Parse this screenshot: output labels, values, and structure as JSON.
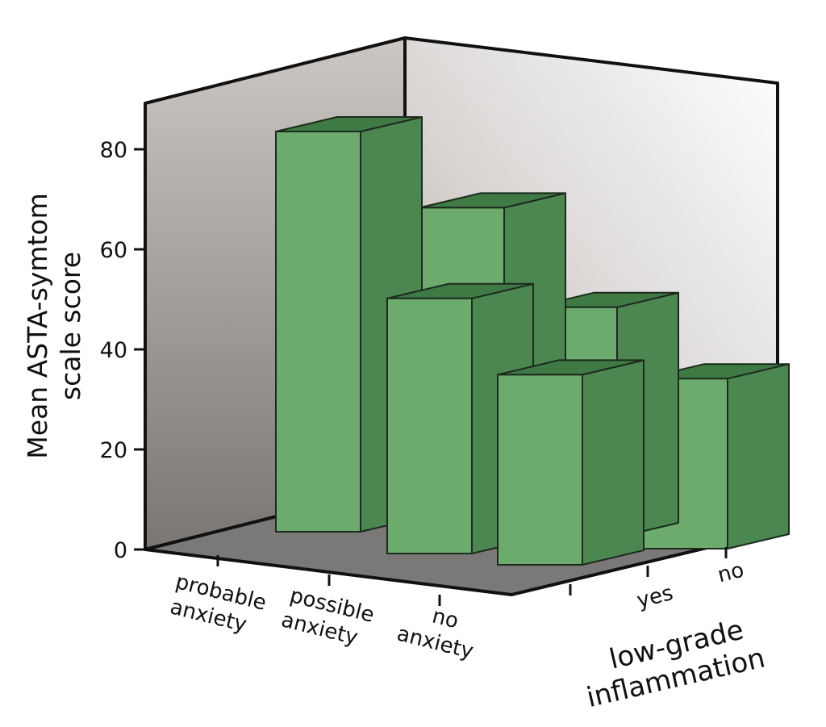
{
  "chart_data": {
    "type": "bar",
    "categories": [
      "probable anxiety",
      "possible anxiety",
      "no anxiety"
    ],
    "category_lines": [
      [
        "probable",
        "anxiety"
      ],
      [
        "possible",
        "anxiety"
      ],
      [
        "no",
        "anxiety"
      ]
    ],
    "series": [
      {
        "values": [
          80,
          51,
          38
        ]
      },
      {
        "values": [
          63,
          46,
          34
        ]
      }
    ],
    "depth_categories": [
      "yes",
      "no"
    ],
    "ylabel_lines": [
      "Mean ASTA-symtom",
      "scale score"
    ],
    "depth_title_lines": [
      "low-grade",
      "inflammation"
    ],
    "yticks": [
      0,
      20,
      40,
      60,
      80
    ],
    "ylim": [
      0,
      90
    ],
    "grid": false,
    "colors": {
      "bar_front": "#6cab6d",
      "bar_side": "#4c8751",
      "bar_top": "#3f7a45",
      "bar_stroke": "#1c2a1d",
      "floor": "#7b7878"
    }
  }
}
